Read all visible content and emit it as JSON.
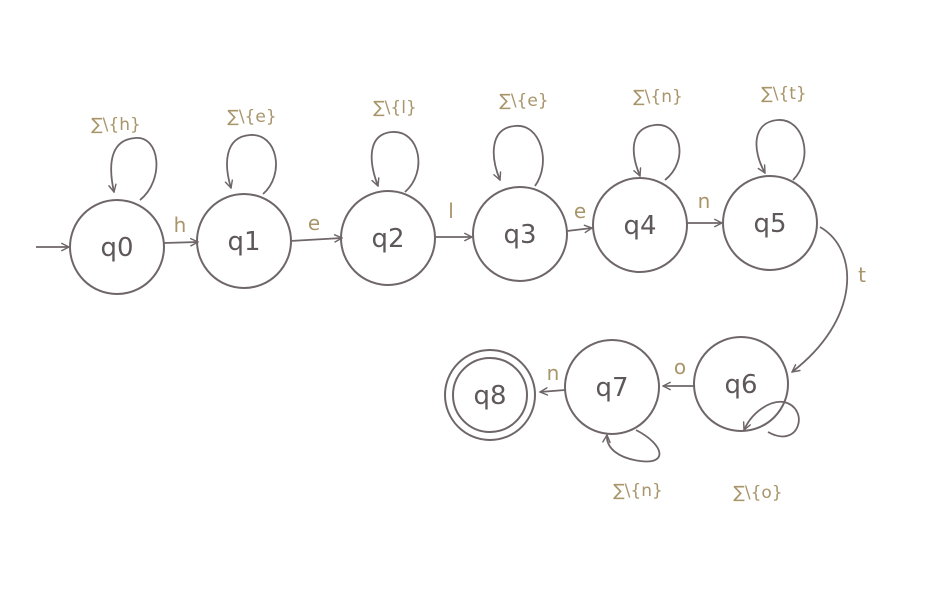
{
  "colors": {
    "ink": "#6e6669",
    "label_ink": "#a8956a",
    "state_text": "#5f585b",
    "background": "#ffffff"
  },
  "states": [
    {
      "id": "q0",
      "label": "q0"
    },
    {
      "id": "q1",
      "label": "q1"
    },
    {
      "id": "q2",
      "label": "q2"
    },
    {
      "id": "q3",
      "label": "q3"
    },
    {
      "id": "q4",
      "label": "q4"
    },
    {
      "id": "q5",
      "label": "q5"
    },
    {
      "id": "q6",
      "label": "q6"
    },
    {
      "id": "q7",
      "label": "q7"
    },
    {
      "id": "q8",
      "label": "q8"
    }
  ],
  "start_state": "q0",
  "accept_states": [
    "q8"
  ],
  "transitions": [
    {
      "from": "q0",
      "to": "q1",
      "label": "h"
    },
    {
      "from": "q1",
      "to": "q2",
      "label": "e"
    },
    {
      "from": "q2",
      "to": "q3",
      "label": "l"
    },
    {
      "from": "q3",
      "to": "q4",
      "label": "e"
    },
    {
      "from": "q4",
      "to": "q5",
      "label": "n"
    },
    {
      "from": "q5",
      "to": "q6",
      "label": "t"
    },
    {
      "from": "q6",
      "to": "q7",
      "label": "o"
    },
    {
      "from": "q7",
      "to": "q8",
      "label": "n"
    }
  ],
  "self_loops": [
    {
      "state": "q0",
      "label": "∑\\{h}"
    },
    {
      "state": "q1",
      "label": "∑\\{e}"
    },
    {
      "state": "q2",
      "label": "∑\\{l}"
    },
    {
      "state": "q3",
      "label": "∑\\{e}"
    },
    {
      "state": "q4",
      "label": "∑\\{n}"
    },
    {
      "state": "q5",
      "label": "∑\\{t}"
    },
    {
      "state": "q6",
      "label": "∑\\{o}"
    },
    {
      "state": "q7",
      "label": "∑\\{n}"
    }
  ]
}
